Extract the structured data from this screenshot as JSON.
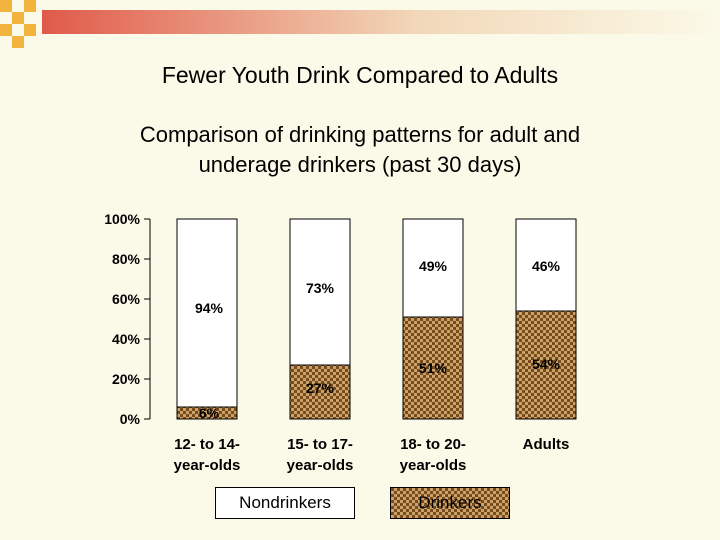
{
  "slide": {
    "title": "Fewer Youth Drink Compared to Adults",
    "subtitle_line1": "Comparison of drinking patterns for adult and",
    "subtitle_line2": "underage drinkers (past 30 days)",
    "accent_color": "#e05a4a",
    "deco_color": "#f2b43c"
  },
  "chart_data": {
    "type": "bar",
    "stacked": true,
    "percent_stacked": true,
    "categories": [
      [
        "12- to 14-",
        "year-olds"
      ],
      [
        "15- to 17-",
        "year-olds"
      ],
      [
        "18- to 20-",
        "year-olds"
      ],
      [
        "Adults"
      ]
    ],
    "series": [
      {
        "name": "Drinkers",
        "values": [
          6,
          27,
          51,
          54
        ],
        "labels": [
          "6%",
          "27%",
          "51%",
          "54%"
        ],
        "fill": "checkered-brown"
      },
      {
        "name": "Nondrinkers",
        "values": [
          94,
          73,
          49,
          46
        ],
        "labels": [
          "94%",
          "73%",
          "49%",
          "46%"
        ],
        "fill": "#ffffff"
      }
    ],
    "ylim": [
      0,
      100
    ],
    "yticks": [
      "0%",
      "20%",
      "40%",
      "60%",
      "80%",
      "100%"
    ],
    "legend": [
      "Nondrinkers",
      "Drinkers"
    ],
    "legend_position": "bottom",
    "grid": false
  }
}
